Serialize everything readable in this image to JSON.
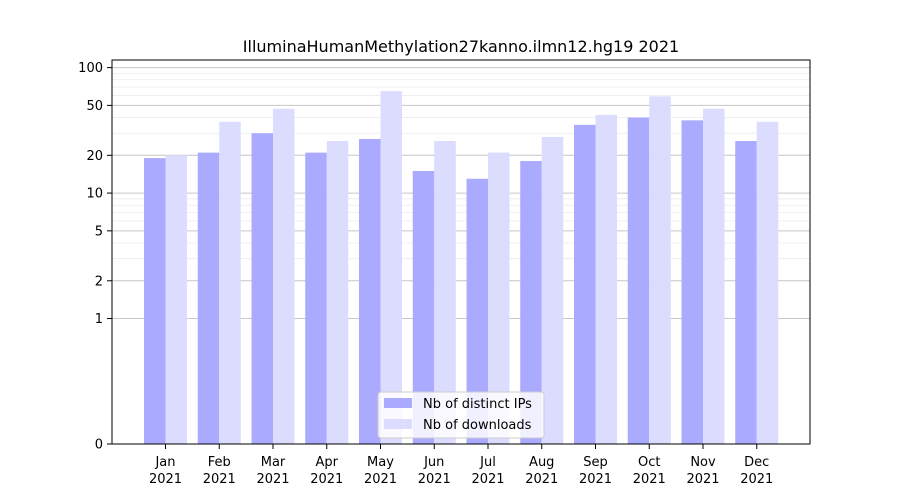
{
  "chart_data": {
    "type": "bar",
    "title": "IlluminaHumanMethylation27kanno.ilmn12.hg19 2021",
    "xlabel": "",
    "ylabel": "",
    "categories": [
      [
        "Jan",
        "2021"
      ],
      [
        "Feb",
        "2021"
      ],
      [
        "Mar",
        "2021"
      ],
      [
        "Apr",
        "2021"
      ],
      [
        "May",
        "2021"
      ],
      [
        "Jun",
        "2021"
      ],
      [
        "Jul",
        "2021"
      ],
      [
        "Aug",
        "2021"
      ],
      [
        "Sep",
        "2021"
      ],
      [
        "Oct",
        "2021"
      ],
      [
        "Nov",
        "2021"
      ],
      [
        "Dec",
        "2021"
      ]
    ],
    "series": [
      {
        "name": "Nb of distinct IPs",
        "color": "#aaaaff",
        "values": [
          19,
          21,
          30,
          21,
          27,
          15,
          13,
          18,
          35,
          40,
          38,
          26
        ]
      },
      {
        "name": "Nb of downloads",
        "color": "#dcdcff",
        "values": [
          20,
          37,
          47,
          26,
          65,
          26,
          21,
          28,
          42,
          59,
          47,
          37
        ]
      }
    ],
    "y_scale": "symlog",
    "y_ticks": [
      0,
      1,
      2,
      5,
      10,
      20,
      50,
      100
    ],
    "y_tick_labels": [
      "0",
      "1",
      "2",
      "5",
      "10",
      "20",
      "50",
      "100"
    ],
    "ylim": [
      0,
      115
    ],
    "grid": true,
    "legend_position": "bottom-center"
  }
}
